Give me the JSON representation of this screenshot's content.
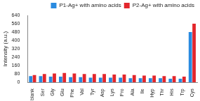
{
  "chart_data": {
    "type": "bar",
    "y_label": "Intensity (a.u.)",
    "categories": [
      "blank",
      "Ser",
      "Gly",
      "Glu",
      "Phe",
      "Val",
      "Tyr",
      "Asp",
      "Lys",
      "Pro",
      "Ala",
      "Ile",
      "Hyp",
      "Thr",
      "His",
      "Trp",
      "Cys"
    ],
    "series": [
      {
        "name": "P1-Ag+ with amino acids",
        "color": "#2a8be0",
        "values": [
          60,
          60,
          55,
          55,
          50,
          50,
          45,
          45,
          45,
          45,
          40,
          40,
          40,
          40,
          35,
          35,
          480
        ]
      },
      {
        "name": "P2-Ag+ with amino acids",
        "color": "#e3262c",
        "values": [
          70,
          80,
          85,
          90,
          85,
          80,
          80,
          80,
          75,
          75,
          70,
          65,
          65,
          60,
          60,
          55,
          560
        ]
      }
    ],
    "ylim": [
      0,
      640
    ],
    "yticks": [
      0,
      80,
      160,
      240,
      320,
      400,
      480,
      560,
      640
    ],
    "grid": false,
    "legend": "upper right"
  }
}
